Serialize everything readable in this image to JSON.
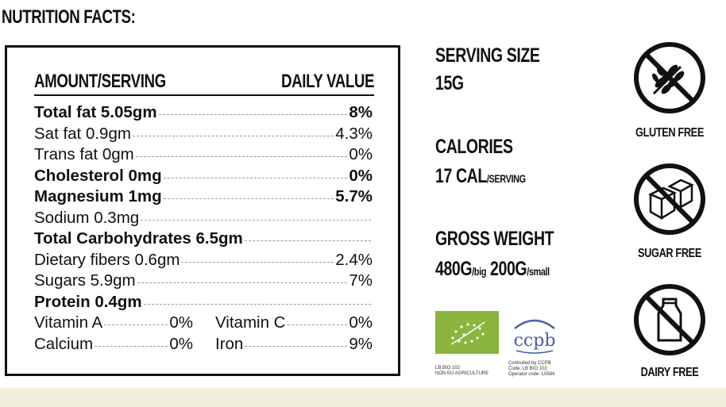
{
  "title": "NUTRITION FACTS:",
  "panel": {
    "amount_header": "AMOUNT/SERVING",
    "daily_header": "DAILY VALUE",
    "rows": [
      {
        "name": "Total fat 5.05gm",
        "value": "8%"
      },
      {
        "name": "Sat fat 0.9gm",
        "value": "4.3%"
      },
      {
        "name": "Trans fat 0gm",
        "value": "0%"
      },
      {
        "name": "Cholesterol 0mg",
        "value": "0%"
      },
      {
        "name": "Magnesium 1mg",
        "value": "5.7%"
      },
      {
        "name": "Sodium 0.3mg",
        "value": ""
      },
      {
        "name": "Total Carbohydrates 6.5gm",
        "value": ""
      },
      {
        "name": "Dietary fibers 0.6gm",
        "value": "2.4%"
      },
      {
        "name": "Sugars 5.9gm",
        "value": "7%"
      },
      {
        "name": "Protein 0.4gm",
        "value": ""
      }
    ],
    "pairs": [
      {
        "left_name": "Vitamin A",
        "left_value": "0%",
        "right_name": "Vitamin C",
        "right_value": "0%"
      },
      {
        "left_name": "Calcium",
        "left_value": "0%",
        "right_name": "Iron",
        "right_value": "9%"
      }
    ]
  },
  "serving": {
    "label": "SERVING SIZE",
    "value": "15G"
  },
  "calories": {
    "label": "CALORIES",
    "value": "17 CAL",
    "unit": "/SERVING"
  },
  "weight": {
    "label": "GROSS WEIGHT",
    "big_value": "480G",
    "big_unit": "/big",
    "small_value": "200G",
    "small_unit": "/small"
  },
  "badges": {
    "gluten": "GLUTEN FREE",
    "sugar": "SUGAR FREE",
    "dairy": "DAIRY FREE"
  },
  "certs": {
    "eu_line1": "LB BIO 102",
    "eu_line2": "NON EU AGRICULTURE",
    "ccpb_logo": "ccpb",
    "ccpb_line1": "Controlled by CCPB",
    "ccpb_line2": "Code: LB BIO 102",
    "ccpb_line3": "Operator code: L0584"
  },
  "colors": {
    "eu_green": "#8ab53e",
    "ccpb_blue": "#4a5ea8",
    "footer": "#f2eedc"
  }
}
